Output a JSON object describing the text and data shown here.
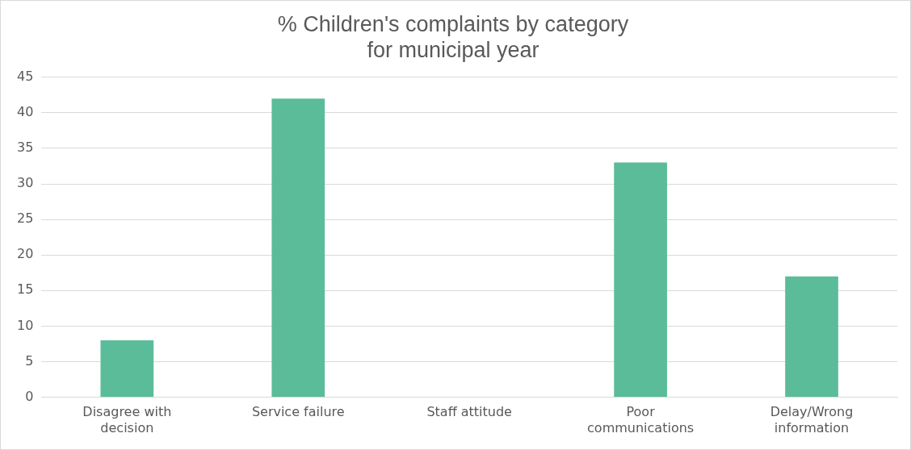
{
  "chart_data": {
    "type": "bar",
    "title": "% Children's complaints by category\nfor municipal year",
    "categories": [
      "Disagree with decision",
      "Service failure",
      "Staff attitude",
      "Poor communications",
      "Delay/Wrong information"
    ],
    "values": [
      8,
      42,
      0,
      33,
      17
    ],
    "color": "#5bbc9a",
    "ylim": [
      0,
      45
    ],
    "yticks": [
      0,
      5,
      10,
      15,
      20,
      25,
      30,
      35,
      40,
      45
    ],
    "grid": "y",
    "legend": false
  }
}
